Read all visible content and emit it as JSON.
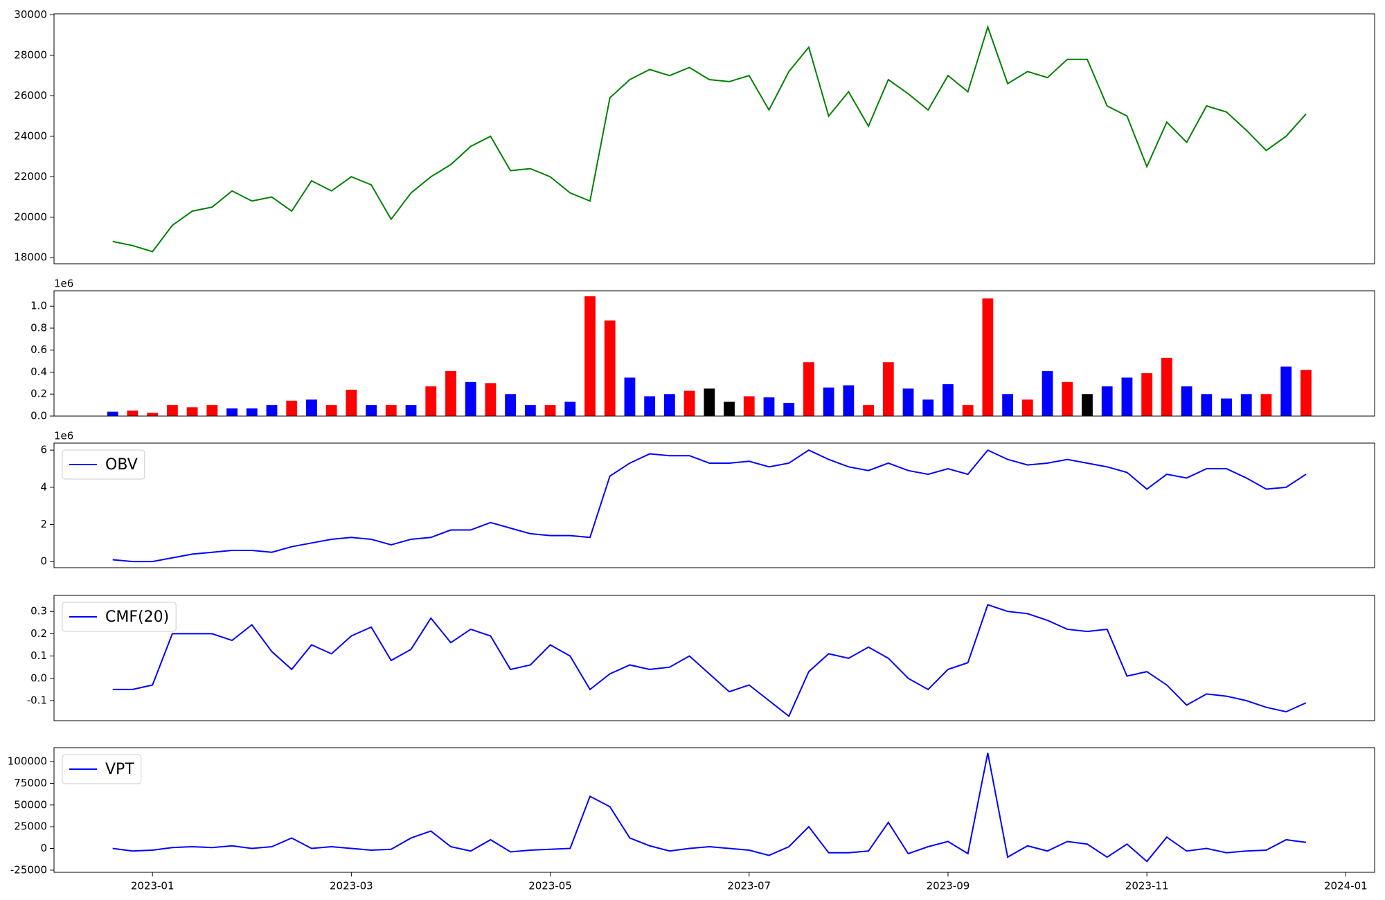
{
  "chart_data": [
    {
      "type": "line",
      "color": "green",
      "x": [
        -0.4,
        -0.2,
        0,
        0.2,
        0.4,
        0.6,
        0.8,
        1,
        1.2,
        1.4,
        1.6,
        1.8,
        2,
        2.2,
        2.4,
        2.6,
        2.8,
        3,
        3.2,
        3.4,
        3.6,
        3.8,
        4,
        4.2,
        4.4,
        4.6,
        4.8,
        5,
        5.2,
        5.4,
        5.6,
        5.8,
        6,
        6.2,
        6.4,
        6.6,
        6.8,
        7,
        7.2,
        7.4,
        7.6,
        7.8,
        8,
        8.2,
        8.4,
        8.6,
        8.8,
        9,
        9.2,
        9.4,
        9.6,
        9.8,
        10,
        10.2,
        10.4,
        10.6,
        10.8,
        11,
        11.2,
        11.4,
        11.6
      ],
      "values": [
        18800,
        18600,
        18300,
        19600,
        20300,
        20500,
        21300,
        20800,
        21000,
        20300,
        21800,
        21300,
        22000,
        21600,
        19900,
        21200,
        22000,
        22600,
        23500,
        24000,
        22300,
        22400,
        22000,
        21200,
        20800,
        25900,
        26800,
        27300,
        27000,
        27400,
        26800,
        26700,
        27000,
        25300,
        27200,
        28400,
        25000,
        26200,
        24500,
        26800,
        26100,
        25300,
        27000,
        26200,
        29400,
        26600,
        27200,
        26900,
        27800,
        27800,
        25500,
        25000,
        22500,
        24700,
        23700,
        25500,
        25200,
        24300,
        23300,
        24000,
        25100
      ],
      "xlim": [
        -0.99,
        12.29
      ],
      "ylim": [
        17700,
        30050
      ],
      "yticks": [
        18000,
        20000,
        22000,
        24000,
        26000,
        28000,
        30000
      ]
    },
    {
      "type": "bar",
      "x": [
        -0.4,
        -0.2,
        0,
        0.2,
        0.4,
        0.6,
        0.8,
        1,
        1.2,
        1.4,
        1.6,
        1.8,
        2,
        2.2,
        2.4,
        2.6,
        2.8,
        3,
        3.2,
        3.4,
        3.6,
        3.8,
        4,
        4.2,
        4.4,
        4.6,
        4.8,
        5,
        5.2,
        5.4,
        5.6,
        5.8,
        6,
        6.2,
        6.4,
        6.6,
        6.8,
        7,
        7.2,
        7.4,
        7.6,
        7.8,
        8,
        8.2,
        8.4,
        8.6,
        8.8,
        9,
        9.2,
        9.4,
        9.6,
        9.8,
        10,
        10.2,
        10.4,
        10.6,
        10.8,
        11,
        11.2,
        11.4,
        11.6
      ],
      "values": [
        0.04,
        0.05,
        0.03,
        0.1,
        0.08,
        0.1,
        0.07,
        0.07,
        0.1,
        0.14,
        0.15,
        0.1,
        0.24,
        0.1,
        0.1,
        0.1,
        0.27,
        0.41,
        0.31,
        0.3,
        0.2,
        0.1,
        0.1,
        0.13,
        1.09,
        0.87,
        0.35,
        0.18,
        0.2,
        0.23,
        0.25,
        0.13,
        0.18,
        0.17,
        0.12,
        0.49,
        0.26,
        0.28,
        0.1,
        0.49,
        0.25,
        0.15,
        0.29,
        0.1,
        1.07,
        0.2,
        0.15,
        0.41,
        0.31,
        0.2,
        0.27,
        0.35,
        0.39,
        0.53,
        0.27,
        0.2,
        0.16,
        0.2,
        0.2,
        0.45,
        0.42
      ],
      "colors": [
        "blue",
        "red",
        "red",
        "red",
        "red",
        "red",
        "blue",
        "blue",
        "blue",
        "red",
        "blue",
        "red",
        "red",
        "blue",
        "red",
        "blue",
        "red",
        "red",
        "blue",
        "red",
        "blue",
        "blue",
        "red",
        "blue",
        "red",
        "red",
        "blue",
        "blue",
        "blue",
        "red",
        "black",
        "black",
        "red",
        "blue",
        "blue",
        "red",
        "blue",
        "blue",
        "red",
        "red",
        "blue",
        "blue",
        "blue",
        "red",
        "red",
        "blue",
        "red",
        "blue",
        "red",
        "black",
        "blue",
        "blue",
        "red",
        "red",
        "blue",
        "blue",
        "blue",
        "blue",
        "red",
        "blue",
        "red"
      ],
      "xlim": [
        -0.99,
        12.29
      ],
      "ylim": [
        0,
        1.14
      ],
      "y_offset_label": "1e6",
      "yticks": [
        {
          "value": 0,
          "label": "0.0"
        },
        0.2,
        0.4,
        0.6,
        0.8,
        {
          "value": 1,
          "label": "1.0"
        }
      ]
    },
    {
      "type": "line",
      "legend": "upper left",
      "x": [
        -0.4,
        -0.2,
        0,
        0.2,
        0.4,
        0.6,
        0.8,
        1,
        1.2,
        1.4,
        1.6,
        1.8,
        2,
        2.2,
        2.4,
        2.6,
        2.8,
        3,
        3.2,
        3.4,
        3.6,
        3.8,
        4,
        4.2,
        4.4,
        4.6,
        4.8,
        5,
        5.2,
        5.4,
        5.6,
        5.8,
        6,
        6.2,
        6.4,
        6.6,
        6.8,
        7,
        7.2,
        7.4,
        7.6,
        7.8,
        8,
        8.2,
        8.4,
        8.6,
        8.8,
        9,
        9.2,
        9.4,
        9.6,
        9.8,
        10,
        10.2,
        10.4,
        10.6,
        10.8,
        11,
        11.2,
        11.4,
        11.6
      ],
      "series": [
        {
          "name": "OBV",
          "color": "blue",
          "values": [
            0.1,
            0,
            0,
            0.2,
            0.4,
            0.5,
            0.6,
            0.6,
            0.5,
            0.8,
            1,
            1.2,
            1.3,
            1.2,
            0.9,
            1.2,
            1.3,
            1.7,
            1.7,
            2.1,
            1.8,
            1.5,
            1.4,
            1.4,
            1.3,
            4.6,
            5.3,
            5.8,
            5.7,
            5.7,
            5.3,
            5.3,
            5.4,
            5.1,
            5.3,
            6,
            5.5,
            5.1,
            4.9,
            5.3,
            4.9,
            4.7,
            5,
            4.7,
            6,
            5.5,
            5.2,
            5.3,
            5.5,
            5.3,
            5.1,
            4.8,
            3.9,
            4.7,
            4.5,
            5,
            5,
            4.5,
            3.9,
            4,
            4.7
          ]
        }
      ],
      "xlim": [
        -0.99,
        12.29
      ],
      "ylim": [
        -0.33,
        6.38
      ],
      "y_offset_label": "1e6",
      "yticks": [
        0,
        2,
        4,
        6
      ]
    },
    {
      "type": "line",
      "legend": "upper left",
      "x": [
        -0.4,
        -0.2,
        0,
        0.2,
        0.4,
        0.6,
        0.8,
        1,
        1.2,
        1.4,
        1.6,
        1.8,
        2,
        2.2,
        2.4,
        2.6,
        2.8,
        3,
        3.2,
        3.4,
        3.6,
        3.8,
        4,
        4.2,
        4.4,
        4.6,
        4.8,
        5,
        5.2,
        5.4,
        5.6,
        5.8,
        6,
        6.2,
        6.4,
        6.6,
        6.8,
        7,
        7.2,
        7.4,
        7.6,
        7.8,
        8,
        8.2,
        8.4,
        8.6,
        8.8,
        9,
        9.2,
        9.4,
        9.6,
        9.8,
        10,
        10.2,
        10.4,
        10.6,
        10.8,
        11,
        11.2,
        11.4,
        11.6
      ],
      "series": [
        {
          "name": "CMF(20)",
          "color": "blue",
          "values": [
            -0.05,
            -0.05,
            -0.03,
            0.2,
            0.2,
            0.2,
            0.17,
            0.24,
            0.12,
            0.04,
            0.15,
            0.11,
            0.19,
            0.23,
            0.08,
            0.13,
            0.27,
            0.16,
            0.22,
            0.19,
            0.04,
            0.06,
            0.15,
            0.1,
            -0.05,
            0.02,
            0.06,
            0.04,
            0.05,
            0.1,
            0.02,
            -0.06,
            -0.03,
            -0.1,
            -0.17,
            0.03,
            0.11,
            0.09,
            0.14,
            0.09,
            0,
            -0.05,
            0.04,
            0.07,
            0.33,
            0.3,
            0.29,
            0.26,
            0.22,
            0.21,
            0.22,
            0.01,
            0.03,
            -0.03,
            -0.12,
            -0.07,
            -0.08,
            -0.1,
            -0.13,
            -0.15,
            -0.11
          ]
        }
      ],
      "xlim": [
        -0.99,
        12.29
      ],
      "ylim": [
        -0.19,
        0.372
      ],
      "yticks": [
        -0.1,
        {
          "value": 0,
          "label": "0.0"
        },
        0.1,
        0.2,
        0.3
      ]
    },
    {
      "type": "line",
      "legend": "upper left",
      "x": [
        -0.4,
        -0.2,
        0,
        0.2,
        0.4,
        0.6,
        0.8,
        1,
        1.2,
        1.4,
        1.6,
        1.8,
        2,
        2.2,
        2.4,
        2.6,
        2.8,
        3,
        3.2,
        3.4,
        3.6,
        3.8,
        4,
        4.2,
        4.4,
        4.6,
        4.8,
        5,
        5.2,
        5.4,
        5.6,
        5.8,
        6,
        6.2,
        6.4,
        6.6,
        6.8,
        7,
        7.2,
        7.4,
        7.6,
        7.8,
        8,
        8.2,
        8.4,
        8.6,
        8.8,
        9,
        9.2,
        9.4,
        9.6,
        9.8,
        10,
        10.2,
        10.4,
        10.6,
        10.8,
        11,
        11.2,
        11.4,
        11.6
      ],
      "series": [
        {
          "name": "VPT",
          "color": "blue",
          "values": [
            0,
            -3000,
            -2000,
            1000,
            2000,
            1000,
            3000,
            0,
            2000,
            12000,
            0,
            2000,
            0,
            -2000,
            -1000,
            12000,
            20000,
            2000,
            -3000,
            10000,
            -4000,
            -2000,
            -1000,
            0,
            60000,
            48000,
            12000,
            3000,
            -3000,
            0,
            2000,
            0,
            -2000,
            -8000,
            2000,
            25000,
            -5000,
            -5000,
            -3000,
            30000,
            -6000,
            2000,
            8000,
            -6000,
            110000,
            -10000,
            3000,
            -3000,
            8000,
            5000,
            -10000,
            5000,
            -15000,
            13000,
            -3000,
            0,
            -5000,
            -3000,
            -2000,
            10000,
            7000
          ]
        }
      ],
      "xlim": [
        -0.99,
        12.29
      ],
      "ylim": [
        -27500,
        116000
      ],
      "yticks": [
        -25000,
        0,
        25000,
        50000,
        75000,
        100000
      ],
      "xticks": [
        {
          "value": 0,
          "label": "2023-01"
        },
        {
          "value": 2,
          "label": "2023-03"
        },
        {
          "value": 4,
          "label": "2023-05"
        },
        {
          "value": 6,
          "label": "2023-07"
        },
        {
          "value": 8,
          "label": "2023-09"
        },
        {
          "value": 10,
          "label": "2023-11"
        },
        {
          "value": 12,
          "label": "2024-01"
        }
      ]
    }
  ]
}
